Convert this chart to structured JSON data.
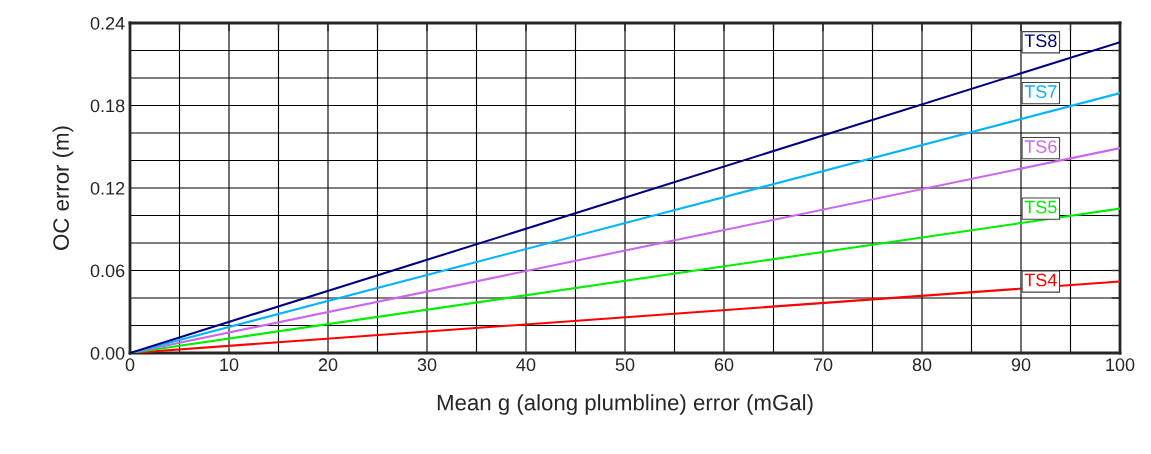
{
  "chart_data": {
    "type": "line",
    "xlabel": "Mean g (along plumbline) error (mGal)",
    "ylabel": "OC error (m)",
    "x": [
      0,
      100
    ],
    "series": [
      {
        "name": "TS4",
        "color": "#ff0000",
        "values": [
          0,
          0.052
        ]
      },
      {
        "name": "TS5",
        "color": "#00ee00",
        "values": [
          0,
          0.105
        ]
      },
      {
        "name": "TS6",
        "color": "#cc66ee",
        "values": [
          0,
          0.149
        ]
      },
      {
        "name": "TS7",
        "color": "#00b4ff",
        "values": [
          0,
          0.189
        ]
      },
      {
        "name": "TS8",
        "color": "#000080",
        "values": [
          0,
          0.226
        ]
      }
    ],
    "xlim": [
      0,
      100
    ],
    "ylim": [
      0,
      0.24
    ],
    "xticks": [
      0,
      {
        "value": 5,
        "label": null
      },
      10,
      {
        "value": 15,
        "label": null
      },
      20,
      {
        "value": 25,
        "label": null
      },
      30,
      {
        "value": 35,
        "label": null
      },
      40,
      {
        "value": 45,
        "label": null
      },
      50,
      {
        "value": 55,
        "label": null
      },
      60,
      {
        "value": 65,
        "label": null
      },
      70,
      {
        "value": 75,
        "label": null
      },
      80,
      {
        "value": 85,
        "label": null
      },
      90,
      {
        "value": 95,
        "label": null
      },
      100
    ],
    "yticks": [
      {
        "value": 0,
        "label": "0.00"
      },
      {
        "value": 0.02,
        "label": null
      },
      {
        "value": 0.04,
        "label": null
      },
      {
        "value": 0.06,
        "label": "0.06"
      },
      {
        "value": 0.08,
        "label": null
      },
      {
        "value": 0.1,
        "label": null
      },
      {
        "value": 0.12,
        "label": "0.12"
      },
      {
        "value": 0.14,
        "label": null
      },
      {
        "value": 0.16,
        "label": null
      },
      {
        "value": 0.18,
        "label": "0.18"
      },
      {
        "value": 0.2,
        "label": null
      },
      {
        "value": 0.22,
        "label": null
      },
      {
        "value": 0.24,
        "label": "0.24"
      }
    ],
    "grid": true,
    "legend": false,
    "marker": "none",
    "line_style": "solid"
  }
}
